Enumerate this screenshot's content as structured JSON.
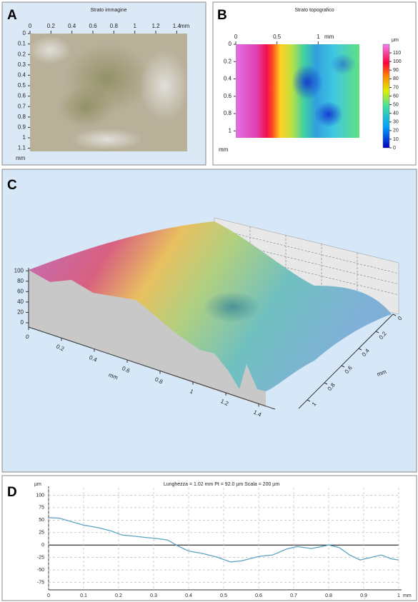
{
  "chart_data": [
    {
      "type": "image",
      "panel": "A",
      "title": "Strato immagine",
      "xlim": [
        0,
        1.5
      ],
      "xticks": [
        0,
        0.2,
        0.4,
        0.6,
        0.8,
        1,
        1.2,
        1.4
      ],
      "x_unit": "mm",
      "ylim": [
        0,
        1.13
      ],
      "yticks": [
        0,
        0.1,
        0.2,
        0.3,
        0.4,
        0.5,
        0.6,
        0.7,
        0.8,
        0.9,
        1,
        1.1
      ],
      "y_unit": "mm"
    },
    {
      "type": "heatmap",
      "panel": "B",
      "title": "Strato topografico",
      "xlim": [
        0,
        1.5
      ],
      "xticks": [
        0,
        0.5,
        1
      ],
      "x_unit": "mm",
      "ylim": [
        0,
        1.08
      ],
      "yticks": [
        0,
        0.2,
        0.4,
        0.6,
        0.8,
        1
      ],
      "y_unit": "mm",
      "colorbar": {
        "label": "µm",
        "lim": [
          0,
          120
        ],
        "ticks": [
          0,
          10,
          20,
          30,
          40,
          50,
          60,
          70,
          80,
          90,
          100,
          110
        ]
      }
    },
    {
      "type": "surface3d",
      "panel": "C",
      "xlim": [
        0,
        1.5
      ],
      "xticks": [
        0,
        0.2,
        0.4,
        0.6,
        0.8,
        1,
        1.2,
        1.4
      ],
      "x_unit": "mm",
      "ylim": [
        0,
        1.1
      ],
      "yticks": [
        0,
        0.2,
        0.4,
        0.6,
        0.8,
        1
      ],
      "y_unit": "mm",
      "zlim": [
        0,
        110
      ],
      "zticks": [
        0,
        20,
        40,
        60,
        80,
        100
      ]
    },
    {
      "type": "line",
      "panel": "D",
      "title": "Lunghezza = 1.02 mm  Pt = 92.0 µm  Scala = 200 µm",
      "xlim": [
        0,
        1
      ],
      "xticks": [
        0,
        0.1,
        0.2,
        0.3,
        0.4,
        0.5,
        0.6,
        0.7,
        0.8,
        0.9,
        1
      ],
      "x_unit": "mm",
      "ylim": [
        -90,
        115
      ],
      "yticks": [
        -75,
        -50,
        -25,
        0,
        25,
        50,
        75,
        100
      ],
      "y_unit": "µm",
      "grid": true,
      "series": [
        {
          "color": "#5ba4c4",
          "x": [
            0,
            0.03,
            0.06,
            0.1,
            0.14,
            0.18,
            0.21,
            0.24,
            0.28,
            0.31,
            0.34,
            0.37,
            0.4,
            0.44,
            0.48,
            0.52,
            0.55,
            0.6,
            0.64,
            0.68,
            0.71,
            0.75,
            0.78,
            0.8,
            0.83,
            0.86,
            0.89,
            0.92,
            0.95,
            0.98,
            1.0
          ],
          "values": [
            55,
            54,
            48,
            40,
            35,
            28,
            20,
            18,
            15,
            13,
            10,
            -2,
            -12,
            -17,
            -24,
            -34,
            -32,
            -23,
            -20,
            -8,
            -3,
            -7,
            -3,
            0,
            -5,
            -20,
            -30,
            -25,
            -20,
            -28,
            -30
          ]
        }
      ]
    }
  ]
}
